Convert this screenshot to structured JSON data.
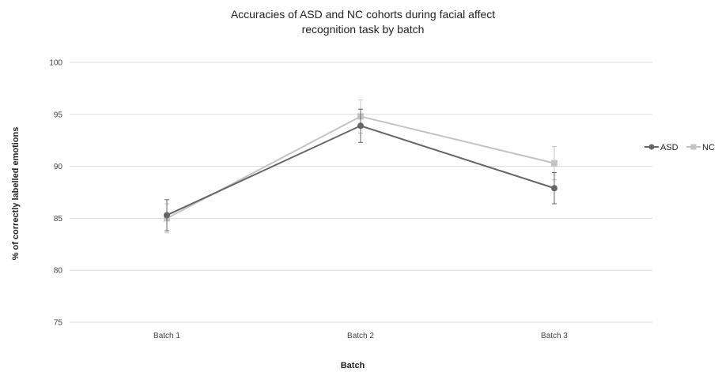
{
  "chart_data": {
    "type": "line",
    "title": [
      "Accuracies of ASD and NC cohorts during facial affect",
      "recognition task by batch"
    ],
    "xlabel": "Batch",
    "ylabel": "% of correctly labelled emotions",
    "categories": [
      "Batch 1",
      "Batch 2",
      "Batch 3"
    ],
    "ylim": [
      75,
      100
    ],
    "yticks": [
      75,
      80,
      85,
      90,
      95,
      100
    ],
    "grid": true,
    "legend_position": "right",
    "series": [
      {
        "name": "ASD",
        "color": "#666666",
        "marker": "circle",
        "values": [
          85.3,
          93.9,
          87.9
        ],
        "error": [
          1.5,
          1.6,
          1.5
        ]
      },
      {
        "name": "NC",
        "color": "#c4c4c4",
        "marker": "square",
        "values": [
          85.0,
          94.8,
          90.3
        ],
        "error": [
          1.4,
          1.6,
          1.6
        ]
      }
    ]
  }
}
